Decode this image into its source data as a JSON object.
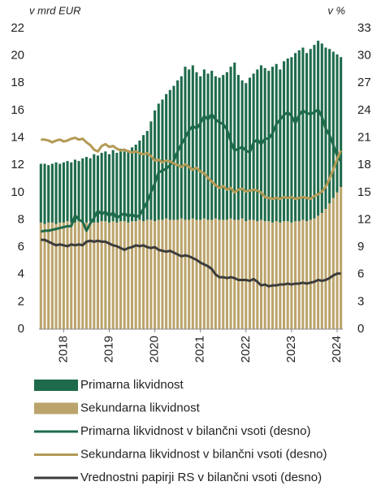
{
  "chart_data": {
    "type": "bar",
    "y_unit_label": "v mrd EUR",
    "y2_unit_label": "v %",
    "categories": [
      null,
      null,
      null,
      null,
      null,
      null,
      "2018",
      null,
      null,
      null,
      null,
      null,
      null,
      null,
      null,
      null,
      null,
      null,
      "2019",
      null,
      null,
      null,
      null,
      null,
      null,
      null,
      null,
      null,
      null,
      null,
      "2020",
      null,
      null,
      null,
      null,
      null,
      null,
      null,
      null,
      null,
      null,
      null,
      "2021",
      null,
      null,
      null,
      null,
      null,
      null,
      null,
      null,
      null,
      null,
      null,
      "2022",
      null,
      null,
      null,
      null,
      null,
      null,
      null,
      null,
      null,
      null,
      null,
      "2023",
      null,
      null,
      null,
      null,
      null,
      null,
      null,
      null,
      null,
      null,
      null,
      "2024",
      null
    ],
    "ylim": [
      0,
      22
    ],
    "yticks": [
      0,
      2,
      4,
      6,
      8,
      10,
      12,
      14,
      16,
      18,
      20,
      22
    ],
    "y2lim": [
      0,
      33
    ],
    "y2ticks": [
      0,
      3,
      6,
      9,
      12,
      15,
      18,
      21,
      24,
      27,
      30,
      33
    ],
    "stacked": true,
    "series": [
      {
        "name": "Primarna likvidnost",
        "type": "bar",
        "color": "#1e6b4b",
        "values": [
          4.3,
          4.4,
          4.2,
          4.3,
          4.5,
          4.3,
          4.4,
          4.4,
          4.4,
          4.6,
          4.4,
          4.7,
          4.8,
          4.6,
          5.0,
          4.9,
          5.0,
          5.1,
          5.0,
          5.2,
          5.1,
          5.3,
          5.1,
          5.3,
          5.4,
          5.6,
          5.8,
          6.3,
          6.5,
          7.2,
          8.1,
          8.5,
          8.8,
          9.1,
          9.5,
          9.8,
          10.2,
          10.4,
          11.2,
          11.0,
          11.2,
          10.8,
          10.5,
          10.9,
          10.7,
          10.9,
          10.4,
          10.4,
          10.6,
          10.8,
          11.1,
          11.5,
          10.6,
          10.1,
          10.1,
          10.4,
          10.7,
          11.1,
          11.3,
          11.2,
          11.0,
          11.4,
          11.5,
          11.2,
          11.7,
          11.9,
          12.1,
          12.3,
          12.5,
          12.6,
          12.3,
          12.5,
          12.7,
          12.8,
          12.4,
          11.8,
          11.3,
          10.7,
          10.1,
          9.5
        ]
      },
      {
        "name": "Sekundarna likvidnost",
        "type": "bar",
        "color": "#bba46c",
        "values": [
          7.8,
          7.7,
          7.8,
          7.8,
          7.7,
          7.8,
          7.8,
          7.9,
          7.8,
          7.8,
          7.9,
          7.8,
          7.8,
          7.9,
          7.8,
          7.8,
          7.9,
          7.9,
          7.8,
          7.9,
          7.8,
          7.9,
          7.9,
          7.8,
          7.9,
          7.9,
          8.0,
          7.9,
          8.0,
          8.0,
          7.9,
          8.0,
          8.0,
          8.1,
          8.0,
          8.0,
          8.0,
          8.1,
          8.0,
          8.0,
          8.1,
          8.0,
          8.0,
          8.1,
          8.0,
          8.0,
          8.1,
          8.0,
          8.0,
          8.0,
          8.1,
          8.0,
          8.0,
          8.1,
          7.9,
          8.0,
          8.0,
          7.9,
          8.0,
          7.9,
          7.9,
          7.8,
          7.9,
          7.8,
          7.9,
          7.9,
          7.8,
          7.9,
          7.9,
          8.0,
          7.9,
          8.0,
          8.1,
          8.3,
          8.5,
          8.8,
          9.2,
          9.6,
          10.0,
          10.4
        ]
      },
      {
        "name": "Primarna likvidnost v bilančni vsoti (desno)",
        "type": "line",
        "axis": "y2",
        "color": "#1e6b4b",
        "values": [
          10.7,
          10.8,
          10.8,
          10.9,
          11.0,
          11.1,
          11.2,
          11.3,
          11.3,
          12.5,
          12.0,
          11.8,
          10.8,
          11.6,
          12.2,
          13.0,
          12.6,
          12.9,
          12.4,
          12.8,
          12.2,
          12.5,
          12.7,
          12.4,
          12.6,
          12.3,
          12.5,
          13.2,
          14.0,
          15.0,
          16.0,
          17.2,
          17.4,
          17.6,
          18.0,
          18.5,
          19.5,
          20.3,
          21.0,
          21.8,
          22.3,
          22.0,
          22.6,
          23.4,
          23.0,
          23.6,
          23.0,
          22.7,
          22.5,
          21.9,
          20.6,
          19.6,
          19.8,
          20.0,
          19.6,
          19.4,
          20.5,
          20.8,
          20.3,
          20.9,
          20.9,
          21.5,
          22.5,
          23.0,
          23.5,
          23.8,
          23.4,
          22.6,
          23.5,
          24.0,
          23.7,
          23.6,
          23.8,
          24.1,
          23.3,
          22.0,
          21.3,
          20.2,
          19.0,
          18.4
        ]
      },
      {
        "name": "Sekundarna likvidnost v bilančni vsoti (desno)",
        "type": "line",
        "axis": "y2",
        "color": "#b39a55",
        "values": [
          20.8,
          20.8,
          20.7,
          20.5,
          20.7,
          20.8,
          20.6,
          20.7,
          20.9,
          21.0,
          20.8,
          20.9,
          20.5,
          20.2,
          19.7,
          19.5,
          20.1,
          20.3,
          20.0,
          20.1,
          19.8,
          19.6,
          19.7,
          19.5,
          19.4,
          19.5,
          19.3,
          19.2,
          19.3,
          19.0,
          18.5,
          18.6,
          18.3,
          18.5,
          18.4,
          18.2,
          18.0,
          17.8,
          18.1,
          17.8,
          17.5,
          17.7,
          17.3,
          17.1,
          16.6,
          16.2,
          15.8,
          15.5,
          15.7,
          15.3,
          15.5,
          15.0,
          15.3,
          15.4,
          15.1,
          15.2,
          15.3,
          15.2,
          15.0,
          14.5,
          14.4,
          14.3,
          14.4,
          14.3,
          14.5,
          14.4,
          14.5,
          14.3,
          14.4,
          14.5,
          14.4,
          14.3,
          14.6,
          14.8,
          15.1,
          15.6,
          16.5,
          17.5,
          18.7,
          19.6
        ]
      },
      {
        "name": "Vrednostni papirji RS v bilančni vsoti (desno)",
        "type": "line",
        "axis": "y2",
        "color": "#3c3c3c",
        "values": [
          9.8,
          9.8,
          9.6,
          9.4,
          9.2,
          9.3,
          9.2,
          9.1,
          9.3,
          9.2,
          9.3,
          9.2,
          9.6,
          9.7,
          9.6,
          9.7,
          9.6,
          9.6,
          9.4,
          9.2,
          9.1,
          8.9,
          8.7,
          8.9,
          9.0,
          9.2,
          9.1,
          9.2,
          9.0,
          8.9,
          9.0,
          8.7,
          8.6,
          8.5,
          8.6,
          8.4,
          8.2,
          8.0,
          8.1,
          8.0,
          7.8,
          7.6,
          7.3,
          7.1,
          6.9,
          6.6,
          6.0,
          5.7,
          5.7,
          5.6,
          5.7,
          5.6,
          5.4,
          5.4,
          5.4,
          5.3,
          5.5,
          5.2,
          4.8,
          4.9,
          4.7,
          4.8,
          4.8,
          4.9,
          4.9,
          5.0,
          4.9,
          5.0,
          5.0,
          5.1,
          5.0,
          5.1,
          5.2,
          5.4,
          5.3,
          5.4,
          5.6,
          5.9,
          6.1,
          6.1
        ]
      }
    ]
  }
}
